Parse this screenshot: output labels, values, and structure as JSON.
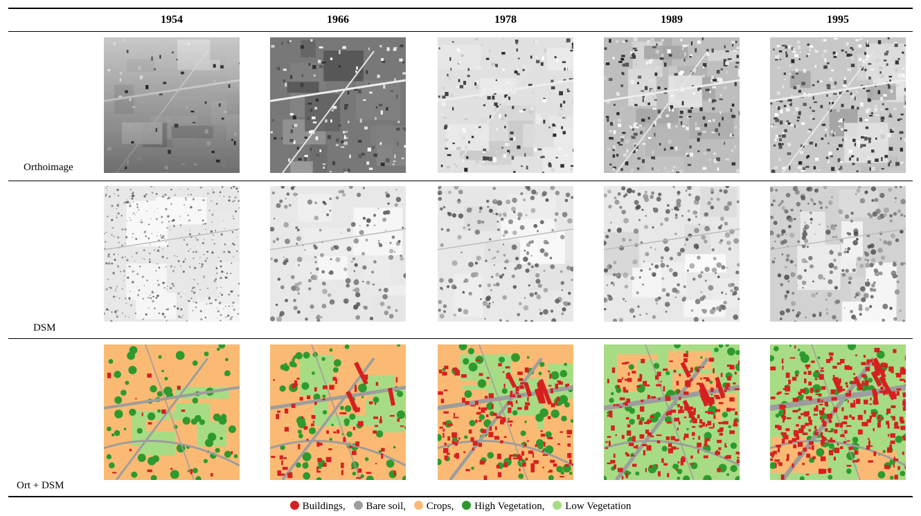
{
  "years": [
    "1954",
    "1966",
    "1978",
    "1989",
    "1995"
  ],
  "rows": [
    {
      "label": "Orthoimage",
      "kind": "ortho"
    },
    {
      "label": "DSM",
      "kind": "dsm"
    },
    {
      "label": "Ort + DSM",
      "kind": "class"
    }
  ],
  "legend": [
    {
      "label": "Buildings,",
      "color": "#d62020"
    },
    {
      "label": "Bare soil,",
      "color": "#9d9d9d"
    },
    {
      "label": "Crops,",
      "color": "#fbba74"
    },
    {
      "label": "High Vegetation,",
      "color": "#2e9a2e"
    },
    {
      "label": "Low Vegetation",
      "color": "#a8dc84"
    }
  ]
}
